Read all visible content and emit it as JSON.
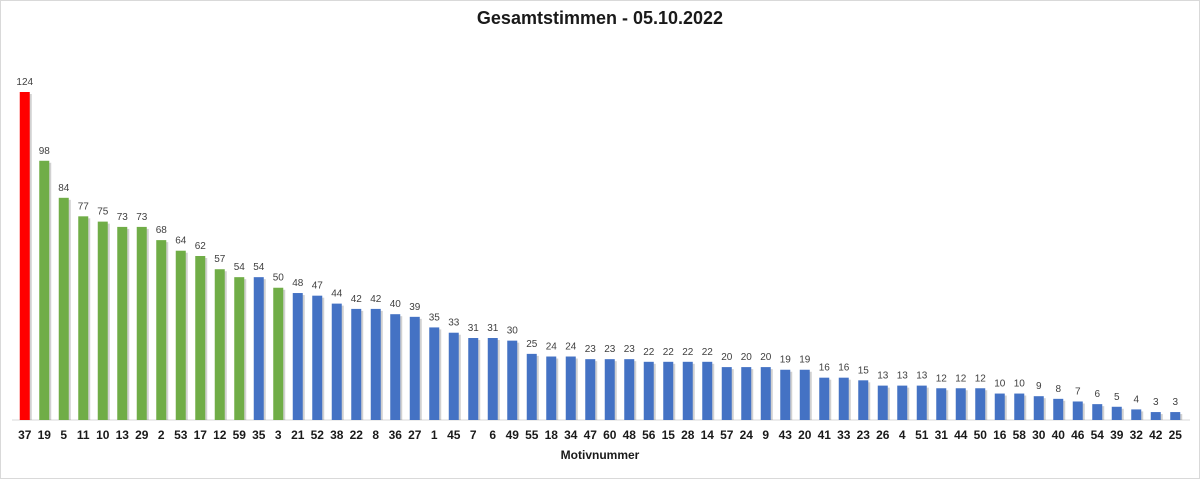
{
  "chart_data": {
    "type": "bar",
    "title": "Gesamtstimmen - 05.10.2022",
    "xlabel": "Motivnummer",
    "ylabel": "",
    "ylim": [
      0,
      124
    ],
    "grid": false,
    "legend": "none",
    "categories": [
      "37",
      "19",
      "5",
      "11",
      "10",
      "13",
      "29",
      "2",
      "53",
      "17",
      "12",
      "59",
      "35",
      "3",
      "21",
      "52",
      "38",
      "22",
      "8",
      "36",
      "27",
      "1",
      "45",
      "7",
      "6",
      "49",
      "55",
      "18",
      "34",
      "47",
      "60",
      "48",
      "56",
      "15",
      "28",
      "14",
      "57",
      "24",
      "9",
      "43",
      "20",
      "41",
      "33",
      "23",
      "26",
      "4",
      "51",
      "31",
      "44",
      "50",
      "16",
      "58",
      "30",
      "40",
      "46",
      "54",
      "39",
      "32",
      "42",
      "25"
    ],
    "values": [
      124,
      98,
      84,
      77,
      75,
      73,
      73,
      68,
      64,
      62,
      57,
      54,
      54,
      50,
      48,
      47,
      44,
      42,
      42,
      40,
      39,
      35,
      33,
      31,
      31,
      30,
      25,
      24,
      24,
      23,
      23,
      23,
      22,
      22,
      22,
      22,
      20,
      20,
      20,
      19,
      19,
      16,
      16,
      15,
      13,
      13,
      13,
      12,
      12,
      12,
      10,
      10,
      9,
      8,
      7,
      6,
      5,
      4,
      3,
      3
    ],
    "bar_colors": [
      "red",
      "green",
      "green",
      "green",
      "green",
      "green",
      "green",
      "green",
      "green",
      "green",
      "green",
      "green",
      "blue",
      "green",
      "blue",
      "blue",
      "blue",
      "blue",
      "blue",
      "blue",
      "blue",
      "blue",
      "blue",
      "blue",
      "blue",
      "blue",
      "blue",
      "blue",
      "blue",
      "blue",
      "blue",
      "blue",
      "blue",
      "blue",
      "blue",
      "blue",
      "blue",
      "blue",
      "blue",
      "blue",
      "blue",
      "blue",
      "blue",
      "blue",
      "blue",
      "blue",
      "blue",
      "blue",
      "blue",
      "blue",
      "blue",
      "blue",
      "blue",
      "blue",
      "blue",
      "blue",
      "blue",
      "blue",
      "blue",
      "blue"
    ],
    "colors": {
      "red": "#ff0000",
      "green": "#70ad47",
      "blue": "#4472c4"
    }
  }
}
